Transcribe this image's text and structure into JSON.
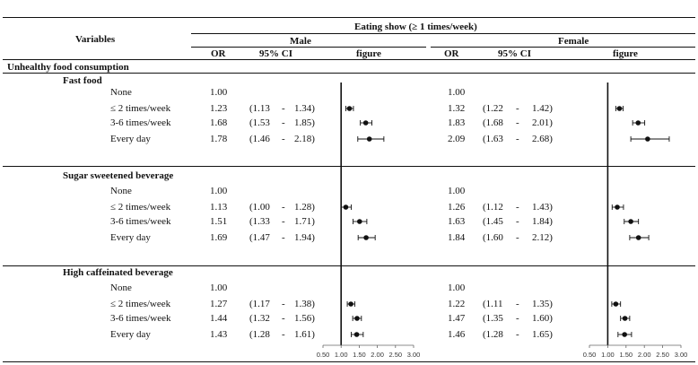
{
  "header": {
    "variables": "Variables",
    "outcome": "Eating show (≥ 1 times/week)",
    "male": "Male",
    "female": "Female",
    "or": "OR",
    "ci": "95% CI",
    "figure": "figure"
  },
  "overall_section": "Unhealthy food consumption",
  "ci_dash": "-",
  "axis_ticks": [
    "0.50",
    "1.00",
    "1.50",
    "2.00",
    "2.50",
    "3.00"
  ],
  "groups": [
    {
      "title": "Fast food",
      "rows": [
        {
          "label": "None",
          "male": {
            "or": "1.00",
            "lo": "",
            "hi": ""
          },
          "female": {
            "or": "1.00",
            "lo": "",
            "hi": ""
          }
        },
        {
          "label": "≤ 2 times/week",
          "male": {
            "or": "1.23",
            "lo": "(1.13",
            "hi": "1.34)"
          },
          "female": {
            "or": "1.32",
            "lo": "(1.22",
            "hi": "1.42)"
          }
        },
        {
          "label": "3-6 times/week",
          "male": {
            "or": "1.68",
            "lo": "(1.53",
            "hi": "1.85)"
          },
          "female": {
            "or": "1.83",
            "lo": "(1.68",
            "hi": "2.01)"
          }
        },
        {
          "label": "Every day",
          "male": {
            "or": "1.78",
            "lo": "(1.46",
            "hi": "2.18)"
          },
          "female": {
            "or": "2.09",
            "lo": "(1.63",
            "hi": "2.68)"
          }
        }
      ]
    },
    {
      "title": "Sugar sweetened beverage",
      "rows": [
        {
          "label": "None",
          "male": {
            "or": "1.00",
            "lo": "",
            "hi": ""
          },
          "female": {
            "or": "1.00",
            "lo": "",
            "hi": ""
          }
        },
        {
          "label": "≤ 2 times/week",
          "male": {
            "or": "1.13",
            "lo": "(1.00",
            "hi": "1.28)"
          },
          "female": {
            "or": "1.26",
            "lo": "(1.12",
            "hi": "1.43)"
          }
        },
        {
          "label": "3-6 times/week",
          "male": {
            "or": "1.51",
            "lo": "(1.33",
            "hi": "1.71)"
          },
          "female": {
            "or": "1.63",
            "lo": "(1.45",
            "hi": "1.84)"
          }
        },
        {
          "label": "Every day",
          "male": {
            "or": "1.69",
            "lo": "(1.47",
            "hi": "1.94)"
          },
          "female": {
            "or": "1.84",
            "lo": "(1.60",
            "hi": "2.12)"
          }
        }
      ]
    },
    {
      "title": "High caffeinated beverage",
      "rows": [
        {
          "label": "None",
          "male": {
            "or": "1.00",
            "lo": "",
            "hi": ""
          },
          "female": {
            "or": "1.00",
            "lo": "",
            "hi": ""
          }
        },
        {
          "label": "≤ 2 times/week",
          "male": {
            "or": "1.27",
            "lo": "(1.17",
            "hi": "1.38)"
          },
          "female": {
            "or": "1.22",
            "lo": "(1.11",
            "hi": "1.35)"
          }
        },
        {
          "label": "3-6 times/week",
          "male": {
            "or": "1.44",
            "lo": "(1.32",
            "hi": "1.56)"
          },
          "female": {
            "or": "1.47",
            "lo": "(1.35",
            "hi": "1.60)"
          }
        },
        {
          "label": "Every day",
          "male": {
            "or": "1.43",
            "lo": "(1.28",
            "hi": "1.61)"
          },
          "female": {
            "or": "1.46",
            "lo": "(1.28",
            "hi": "1.65)"
          }
        }
      ]
    }
  ],
  "chart_data": [
    {
      "type": "scatter",
      "title": "",
      "xlabel": "",
      "ylabel": "",
      "xlim": [
        0.5,
        3.0
      ],
      "reference_line": 1.0,
      "categories": [
        "Fast food: None",
        "Fast food: ≤ 2 times/week",
        "Fast food: 3-6 times/week",
        "Fast food: Every day",
        "Sugar sweetened beverage: None",
        "Sugar sweetened beverage: ≤ 2 times/week",
        "Sugar sweetened beverage: 3-6 times/week",
        "Sugar sweetened beverage: Every day",
        "High caffeinated beverage: None",
        "High caffeinated beverage: ≤ 2 times/week",
        "High caffeinated beverage: 3-6 times/week",
        "High caffeinated beverage: Every day"
      ],
      "series": [
        {
          "name": "Male",
          "or": [
            1.0,
            1.23,
            1.68,
            1.78,
            1.0,
            1.13,
            1.51,
            1.69,
            1.0,
            1.27,
            1.44,
            1.43
          ],
          "lo": [
            null,
            1.13,
            1.53,
            1.46,
            null,
            1.0,
            1.33,
            1.47,
            null,
            1.17,
            1.32,
            1.28
          ],
          "hi": [
            null,
            1.34,
            1.85,
            2.18,
            null,
            1.28,
            1.71,
            1.94,
            null,
            1.38,
            1.56,
            1.61
          ]
        }
      ]
    },
    {
      "type": "scatter",
      "title": "",
      "xlabel": "",
      "ylabel": "",
      "xlim": [
        0.5,
        3.0
      ],
      "reference_line": 1.0,
      "categories": [
        "Fast food: None",
        "Fast food: ≤ 2 times/week",
        "Fast food: 3-6 times/week",
        "Fast food: Every day",
        "Sugar sweetened beverage: None",
        "Sugar sweetened beverage: ≤ 2 times/week",
        "Sugar sweetened beverage: 3-6 times/week",
        "Sugar sweetened beverage: Every day",
        "High caffeinated beverage: None",
        "High caffeinated beverage: ≤ 2 times/week",
        "High caffeinated beverage: 3-6 times/week",
        "High caffeinated beverage: Every day"
      ],
      "series": [
        {
          "name": "Female",
          "or": [
            1.0,
            1.32,
            1.83,
            2.09,
            1.0,
            1.26,
            1.63,
            1.84,
            1.0,
            1.22,
            1.47,
            1.46
          ],
          "lo": [
            null,
            1.22,
            1.68,
            1.63,
            null,
            1.12,
            1.45,
            1.6,
            null,
            1.11,
            1.35,
            1.28
          ],
          "hi": [
            null,
            1.42,
            2.01,
            2.68,
            null,
            1.43,
            1.84,
            2.12,
            null,
            1.35,
            1.6,
            1.65
          ]
        }
      ]
    }
  ]
}
